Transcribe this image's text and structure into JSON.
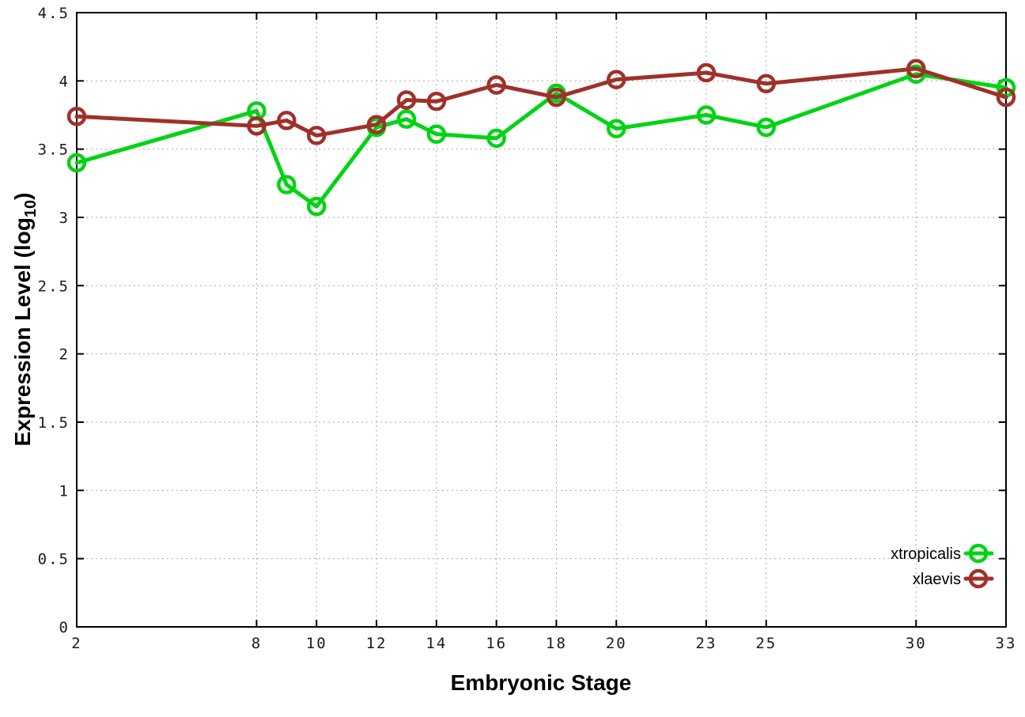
{
  "chart_data": {
    "type": "line",
    "title": "",
    "xlabel": "Embryonic Stage",
    "ylabel": "Expression Level (log10)",
    "ylabel_parts": {
      "prefix": "Expression Level (log",
      "sub": "10",
      "suffix": ")"
    },
    "marker": "open-circle",
    "grid": true,
    "legend_position": "bottom-right",
    "xlim": [
      2,
      33
    ],
    "ylim": [
      0,
      4.5
    ],
    "x": [
      2,
      8,
      9,
      10,
      12,
      13,
      14,
      16,
      18,
      20,
      23,
      25,
      30,
      33
    ],
    "x_ticks": [
      {
        "value": 2,
        "label": "2"
      },
      {
        "value": 8,
        "label": "8"
      },
      {
        "value": 10,
        "label": "10"
      },
      {
        "value": 12,
        "label": "12"
      },
      {
        "value": 14,
        "label": "14"
      },
      {
        "value": 16,
        "label": "16"
      },
      {
        "value": 18,
        "label": "18"
      },
      {
        "value": 20,
        "label": "20"
      },
      {
        "value": 23,
        "label": "23"
      },
      {
        "value": 25,
        "label": "25"
      },
      {
        "value": 30,
        "label": "30"
      },
      {
        "value": 33,
        "label": "33"
      }
    ],
    "y_ticks": [
      {
        "value": 0,
        "label": "0"
      },
      {
        "value": 0.5,
        "label": "0.5"
      },
      {
        "value": 1,
        "label": "1"
      },
      {
        "value": 1.5,
        "label": "1.5"
      },
      {
        "value": 2,
        "label": "2"
      },
      {
        "value": 2.5,
        "label": "2.5"
      },
      {
        "value": 3,
        "label": "3"
      },
      {
        "value": 3.5,
        "label": "3.5"
      },
      {
        "value": 4,
        "label": "4"
      },
      {
        "value": 4.5,
        "label": "4.5"
      }
    ],
    "series": [
      {
        "name": "xtropicalis",
        "color": "#00d414",
        "values": [
          3.4,
          3.78,
          3.24,
          3.08,
          3.66,
          3.72,
          3.61,
          3.58,
          3.91,
          3.65,
          3.75,
          3.66,
          4.05,
          3.95
        ]
      },
      {
        "name": "xlaevis",
        "color": "#a0302a",
        "values": [
          3.74,
          3.67,
          3.71,
          3.6,
          3.68,
          3.86,
          3.85,
          3.97,
          3.88,
          4.01,
          4.06,
          3.98,
          4.09,
          3.88
        ]
      }
    ]
  },
  "style": {
    "background": "#ffffff",
    "axis_color": "#000000",
    "grid_color": "#aaaaaa",
    "tick_label_color": "#1a1a1a"
  }
}
